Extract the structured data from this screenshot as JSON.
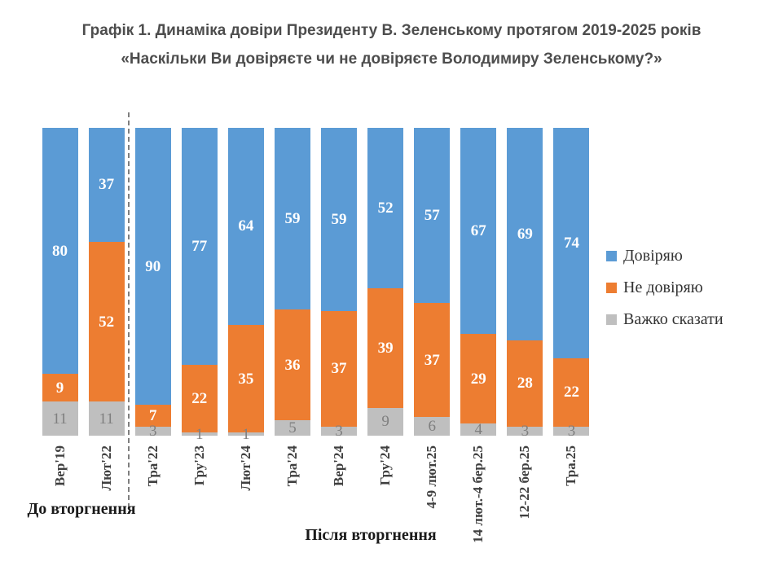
{
  "header": {
    "title": "Графік 1. Динаміка довіри Президенту В. Зеленському протягом 2019-2025 років",
    "subtitle": "«Наскільки Ви довіряєте чи не довіряєте Володимиру Зеленському?»"
  },
  "chart_data": {
    "type": "bar",
    "stacked": true,
    "percent_stacked": true,
    "ylim": [
      0,
      100
    ],
    "grid": false,
    "legend_position": "right",
    "value_labels": true,
    "categories": [
      "Вер'19",
      "Лют'22",
      "Тра'22",
      "Гру'23",
      "Лют'24",
      "Тра'24",
      "Вер'24",
      "Гру'24",
      "4-9 лют.25",
      "14 лют.-4 бер.25",
      "12-22 бер.25",
      "Тра.25"
    ],
    "series": [
      {
        "name": "Довіряю",
        "color": "#5B9BD5",
        "values": [
          80,
          37,
          90,
          77,
          64,
          59,
          59,
          52,
          57,
          67,
          69,
          74
        ]
      },
      {
        "name": "Не довіряю",
        "color": "#ED7D31",
        "values": [
          9,
          52,
          7,
          22,
          35,
          36,
          37,
          39,
          37,
          29,
          28,
          22
        ]
      },
      {
        "name": "Важко сказати",
        "color": "#BFBFBF",
        "values": [
          11,
          11,
          3,
          1,
          1,
          5,
          3,
          9,
          6,
          4,
          3,
          3
        ]
      }
    ],
    "divider_after_category_index": 1
  },
  "legend": {
    "items": [
      {
        "label": "Довіряю",
        "color": "#5B9BD5"
      },
      {
        "label": "Не довіряю",
        "color": "#ED7D31"
      },
      {
        "label": "Важко сказати",
        "color": "#BFBFBF"
      }
    ]
  },
  "annotations": {
    "before_invasion": "До вторгнення",
    "after_invasion": "Після вторгнення"
  }
}
